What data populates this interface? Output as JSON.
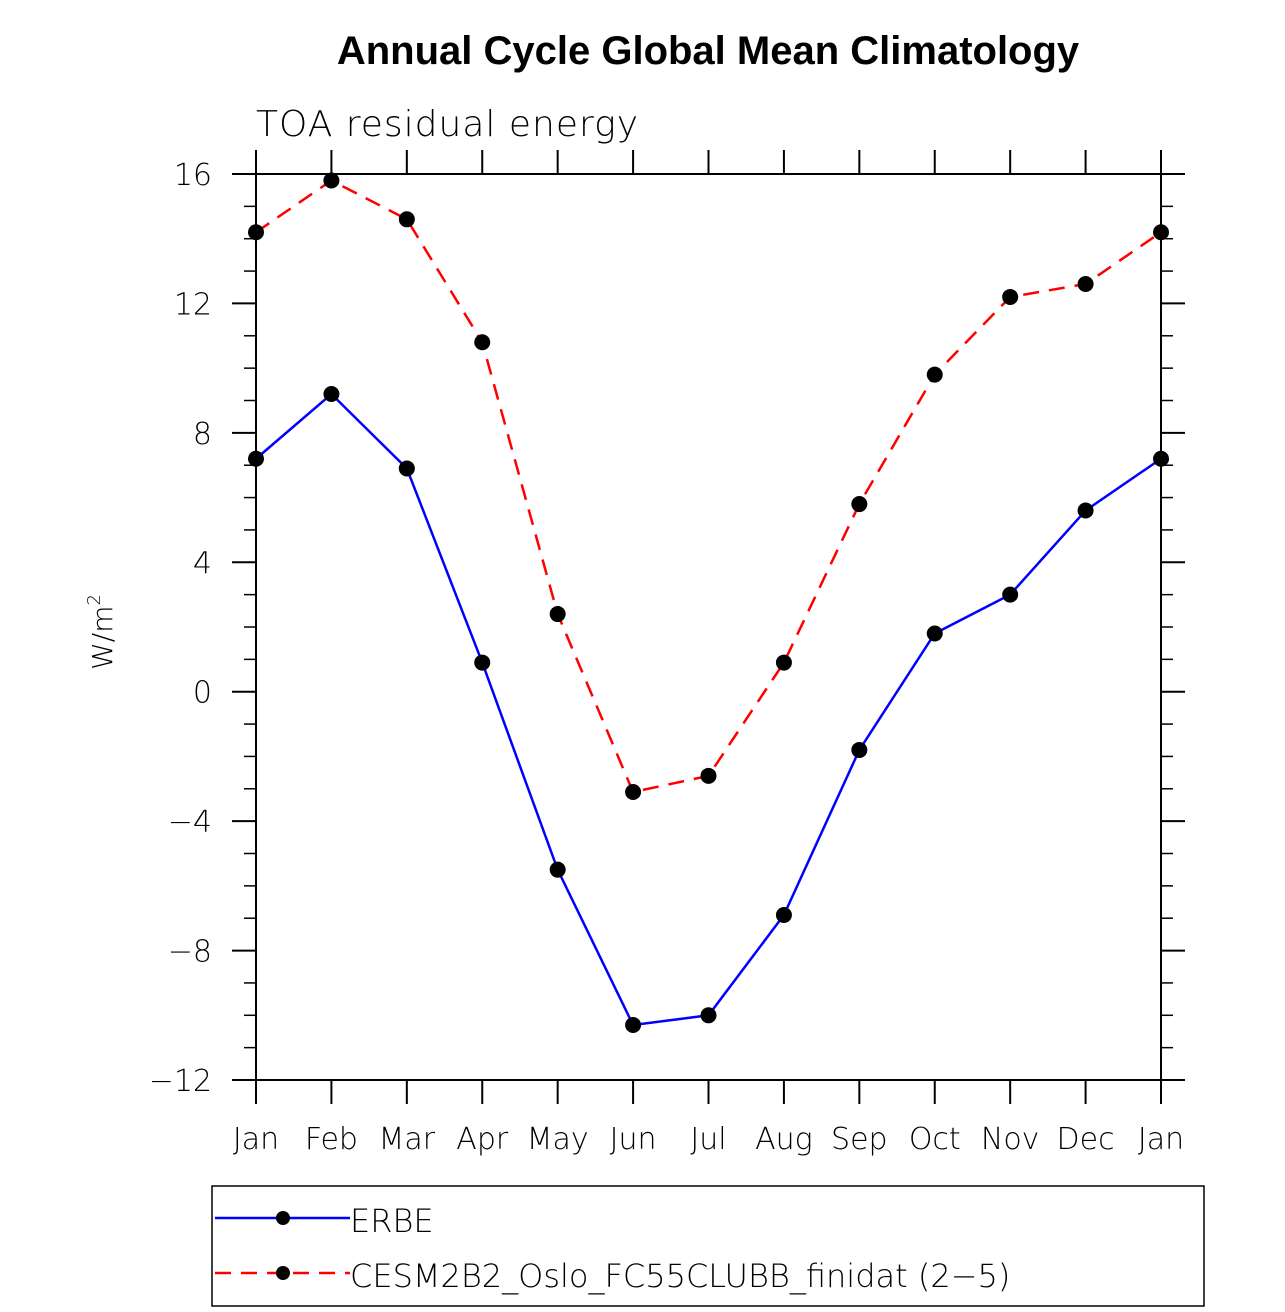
{
  "chart_data": {
    "type": "line",
    "title": "Annual Cycle Global Mean Climatology",
    "subtitle": "TOA residual energy",
    "xlabel": "",
    "ylabel": "W/m",
    "ylabel_superscript": "2",
    "categories": [
      "Jan",
      "Feb",
      "Mar",
      "Apr",
      "May",
      "Jun",
      "Jul",
      "Aug",
      "Sep",
      "Oct",
      "Nov",
      "Dec",
      "Jan"
    ],
    "ylim": [
      -12,
      16
    ],
    "yticks": [
      -12,
      -8,
      -4,
      0,
      4,
      8,
      12,
      16
    ],
    "ytick_labels": [
      "−12",
      "−8",
      "−4",
      "0",
      "4",
      "8",
      "12",
      "16"
    ],
    "y_minor_step": 1,
    "grid": false,
    "legend_position": "bottom",
    "series": [
      {
        "name": "ERBE",
        "color": "#0000ff",
        "line_style": "solid",
        "marker": "filled-circle",
        "values": [
          7.2,
          9.2,
          6.9,
          0.9,
          -5.5,
          -10.3,
          -10.0,
          -6.9,
          -1.8,
          1.8,
          3.0,
          5.6,
          7.2
        ]
      },
      {
        "name": "CESM2B2_Oslo_FC55CLUBB_finidat (2−5)",
        "color": "#ff0000",
        "line_style": "dashed",
        "marker": "filled-circle",
        "values": [
          14.2,
          15.8,
          14.6,
          10.8,
          2.4,
          -3.1,
          -2.6,
          0.9,
          5.8,
          9.8,
          12.2,
          12.6,
          14.2
        ]
      }
    ]
  }
}
